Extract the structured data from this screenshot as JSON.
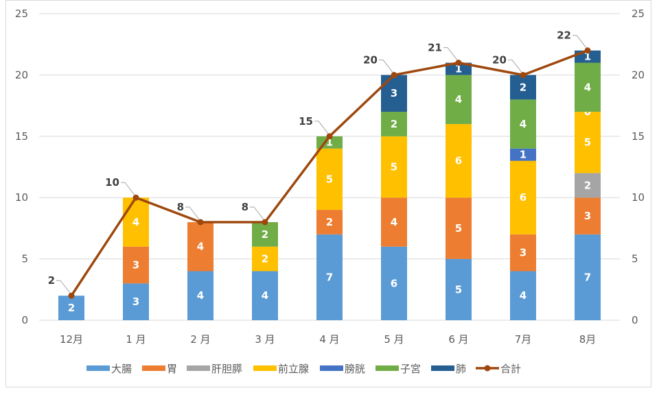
{
  "chart_data": {
    "type": "bar",
    "stacked": true,
    "categories": [
      "12月",
      "1 月",
      "2 月",
      "3 月",
      "4 月",
      "5 月",
      "6 月",
      "7月",
      "8月"
    ],
    "series": [
      {
        "name": "大腸",
        "color": "#5B9BD5",
        "values": [
          2,
          3,
          4,
          4,
          7,
          6,
          5,
          4,
          7
        ],
        "show_zero_label": []
      },
      {
        "name": "胃",
        "color": "#ED7D31",
        "values": [
          0,
          3,
          4,
          0,
          2,
          4,
          5,
          3,
          3
        ],
        "show_zero_label": []
      },
      {
        "name": "肝胆膵",
        "color": "#A5A5A5",
        "values": [
          0,
          0,
          0,
          0,
          0,
          0,
          0,
          0,
          2
        ],
        "show_zero_label": []
      },
      {
        "name": "前立腺",
        "color": "#FFC000",
        "values": [
          0,
          4,
          0,
          2,
          5,
          5,
          6,
          6,
          5
        ],
        "show_zero_label": []
      },
      {
        "name": "膀胱",
        "color": "#4472C4",
        "values": [
          0,
          0,
          0,
          0,
          0,
          0,
          0,
          1,
          0
        ],
        "show_zero_label": [
          8
        ]
      },
      {
        "name": "子宮",
        "color": "#70AD47",
        "values": [
          0,
          0,
          0,
          2,
          1,
          2,
          4,
          4,
          4
        ],
        "show_zero_label": []
      },
      {
        "name": "肺",
        "color": "#255E91",
        "values": [
          0,
          0,
          0,
          0,
          0,
          3,
          1,
          2,
          1
        ],
        "show_zero_label": []
      }
    ],
    "line_series": {
      "name": "合計",
      "color": "#9E480E",
      "values": [
        2,
        10,
        8,
        8,
        15,
        20,
        21,
        20,
        22
      ]
    },
    "ylim": [
      0,
      25
    ],
    "yticks": [
      0,
      5,
      10,
      15,
      20,
      25
    ],
    "y2ticks": [
      0,
      5,
      10,
      15,
      20,
      25
    ],
    "grid": true,
    "legend": "bottom",
    "title": "",
    "xlabel": "",
    "ylabel": ""
  }
}
